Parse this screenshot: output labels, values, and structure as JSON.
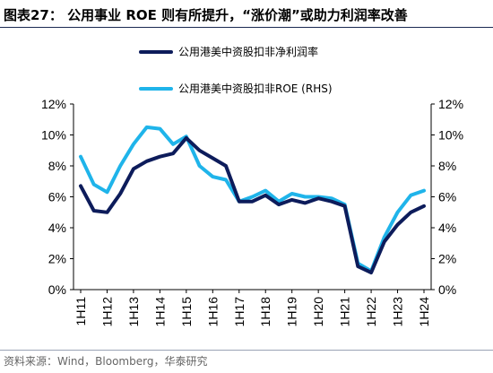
{
  "figure": {
    "title": "图表27：  公用事业 ROE 则有所提升，“涨价潮”或助力利润率改善",
    "source": "资料来源：Wind，Bloomberg，华泰研究"
  },
  "chart_data": {
    "type": "line",
    "x": [
      "1H11",
      "2H11",
      "1H12",
      "2H12",
      "1H13",
      "2H13",
      "1H14",
      "2H14",
      "1H15",
      "2H15",
      "1H16",
      "2H16",
      "1H17",
      "2H17",
      "1H18",
      "2H18",
      "1H19",
      "2H19",
      "1H20",
      "2H20",
      "1H21",
      "2H21",
      "1H22",
      "2H22",
      "1H23",
      "2H23",
      "1H24"
    ],
    "x_tick_labels": [
      "1H11",
      "1H12",
      "1H13",
      "1H14",
      "1H15",
      "1H16",
      "1H17",
      "1H18",
      "1H19",
      "1H20",
      "1H21",
      "1H22",
      "1H23",
      "1H24"
    ],
    "y_tick_labels": [
      "0%",
      "2%",
      "4%",
      "6%",
      "8%",
      "10%",
      "12%"
    ],
    "ylim": [
      0,
      12
    ],
    "y2lim": [
      0,
      12
    ],
    "grid": false,
    "legend_position": "top",
    "series": [
      {
        "name": "公用港美中资股扣非净利润率",
        "axis": "left",
        "color": "#0d1c5b",
        "values": [
          6.7,
          5.1,
          5.0,
          6.2,
          7.8,
          8.3,
          8.6,
          8.8,
          9.8,
          9.0,
          8.5,
          8.0,
          5.7,
          5.7,
          6.1,
          5.5,
          5.8,
          5.6,
          5.9,
          5.7,
          5.4,
          1.5,
          1.1,
          3.1,
          4.2,
          5.0,
          5.4
        ]
      },
      {
        "name": "公用港美中资股扣非ROE (RHS)",
        "axis": "right",
        "color": "#1fb4ea",
        "values": [
          8.6,
          6.8,
          6.3,
          8.0,
          9.4,
          10.5,
          10.4,
          9.4,
          9.9,
          8.0,
          7.3,
          7.1,
          5.7,
          6.0,
          6.4,
          5.7,
          6.2,
          6.0,
          6.0,
          5.9,
          5.5,
          1.7,
          1.2,
          3.4,
          5.0,
          6.1,
          6.4
        ]
      }
    ]
  }
}
